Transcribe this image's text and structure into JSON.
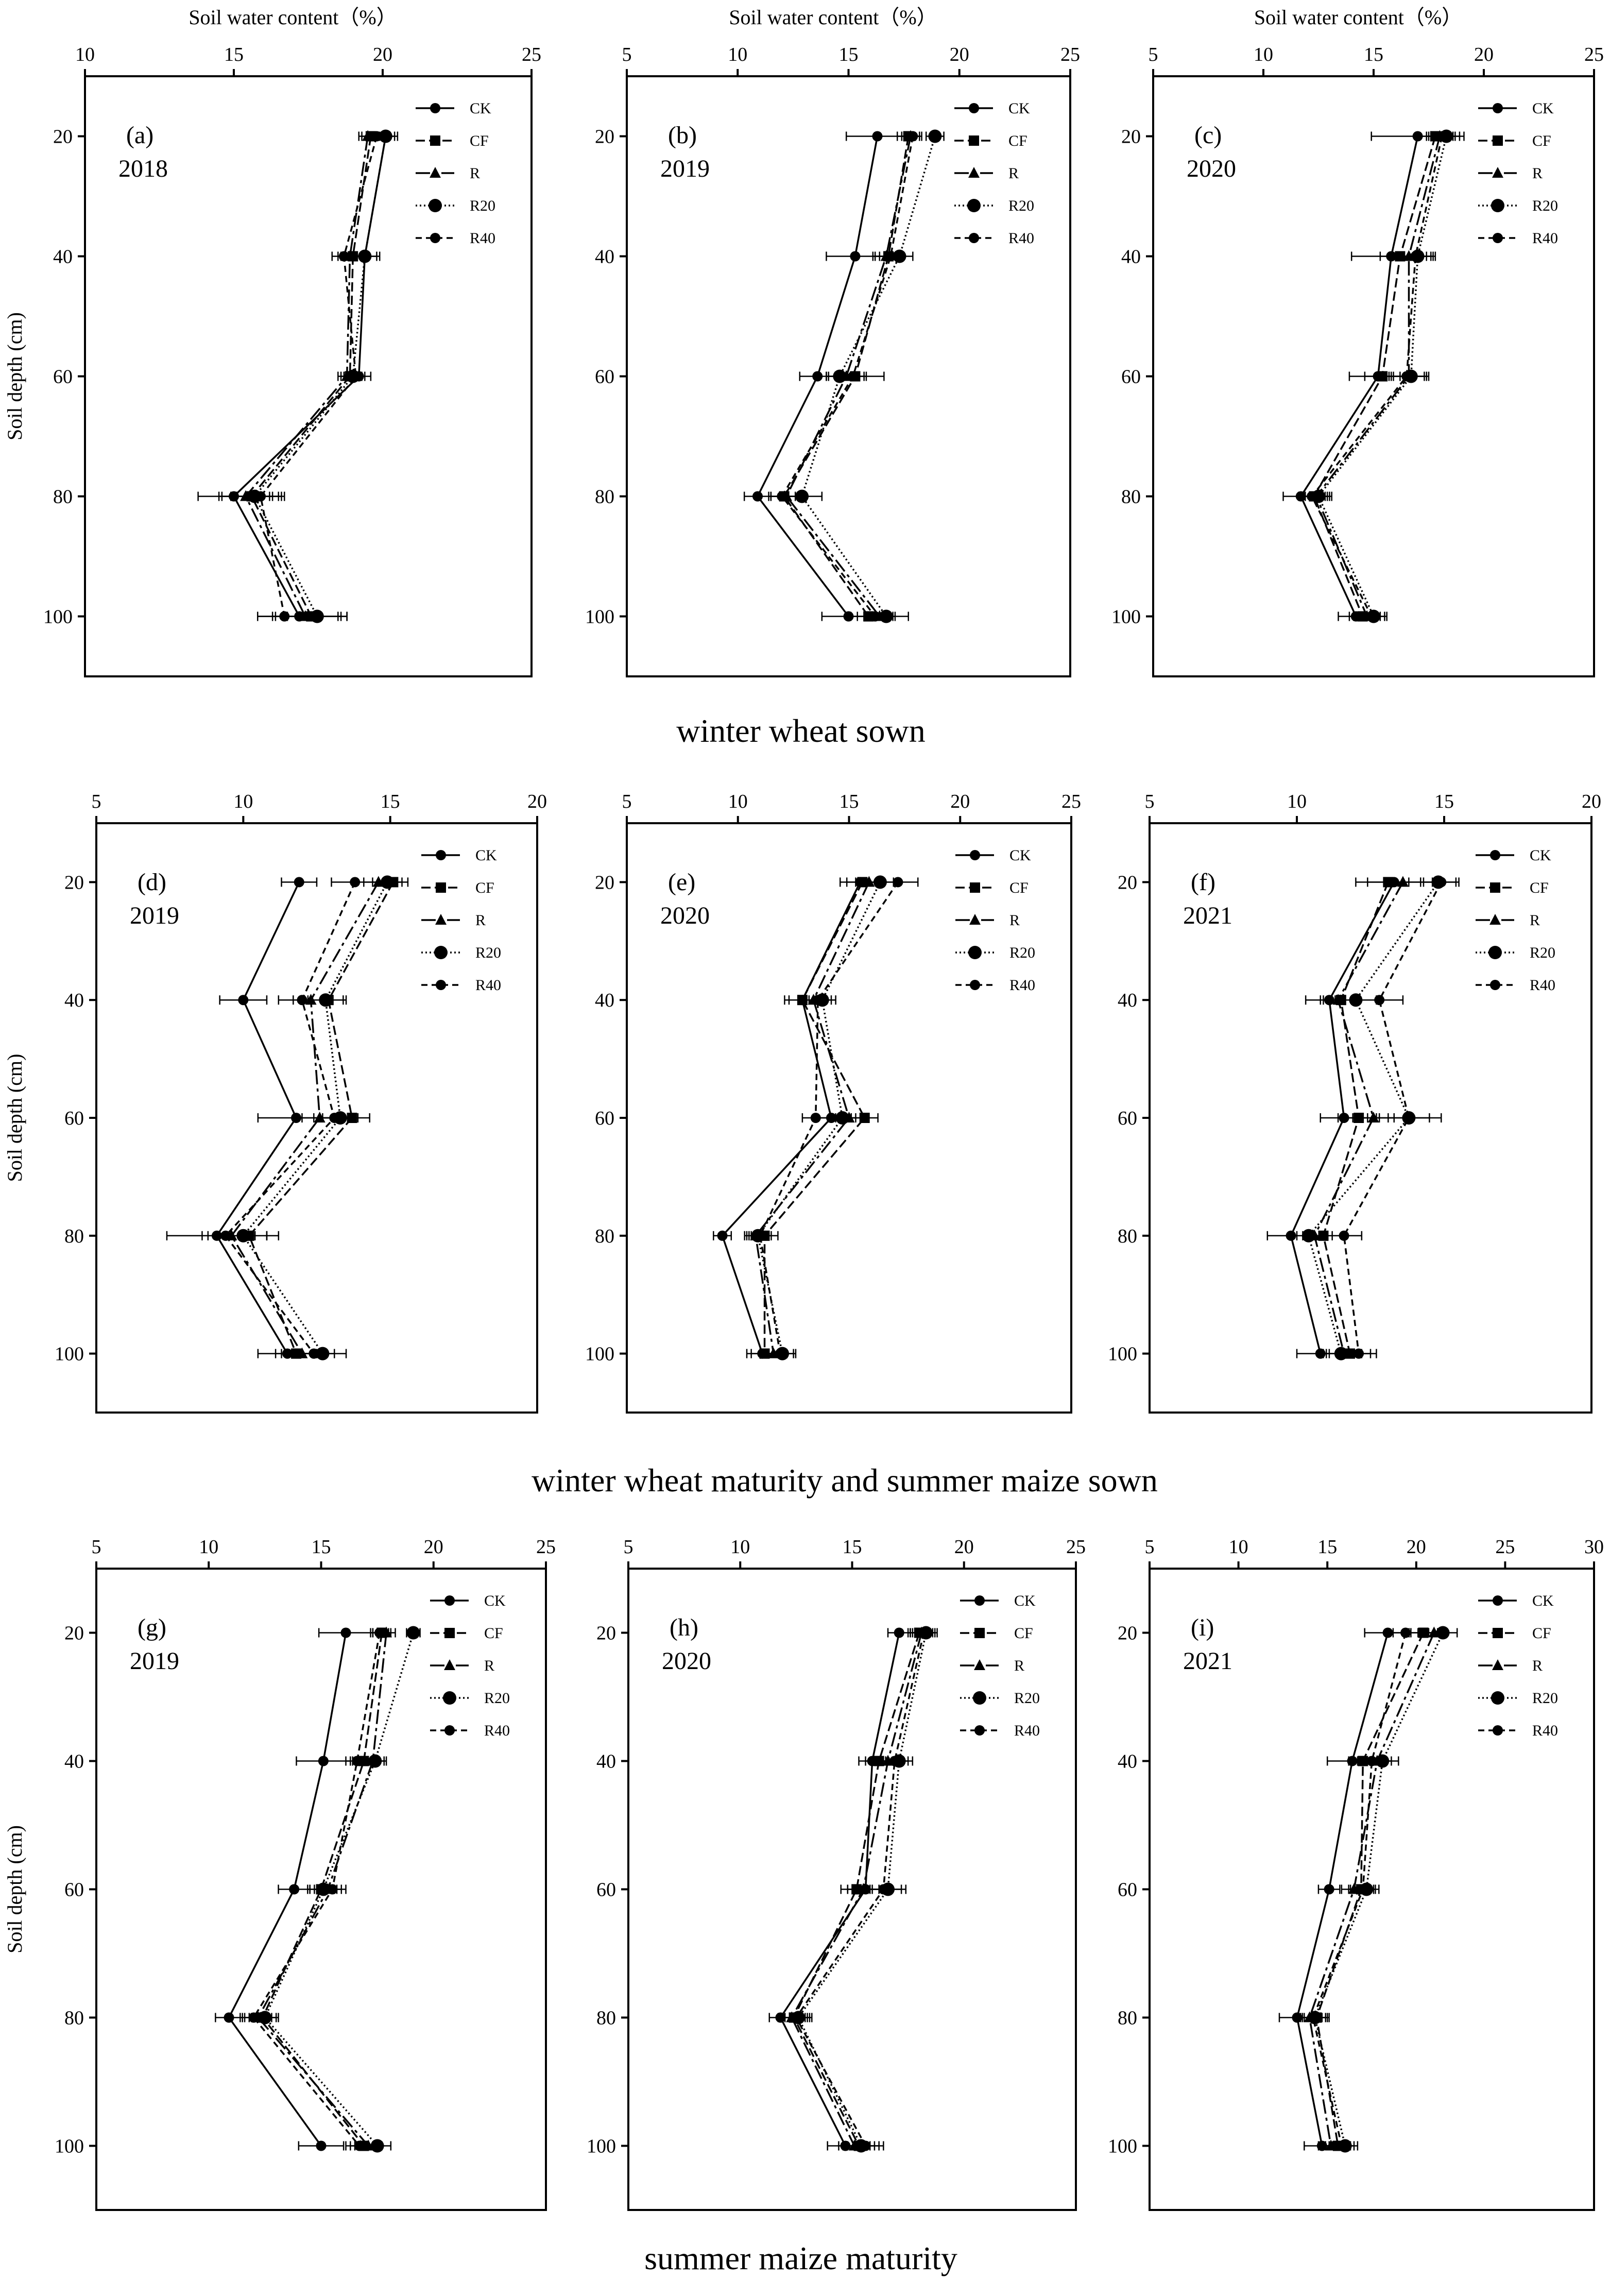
{
  "row_captions": [
    "winter wheat sown",
    "winter wheat maturity and summer maize sown",
    "summer maize maturity"
  ],
  "series_styles": [
    {
      "name": "CK",
      "dash": "",
      "marker": "circle"
    },
    {
      "name": "CF",
      "dash": "18,8",
      "marker": "square"
    },
    {
      "name": "R",
      "dash": "28,8,6,8",
      "marker": "triangle"
    },
    {
      "name": "R20",
      "dash": "3,5",
      "marker": "bigcircle"
    },
    {
      "name": "R40",
      "dash": "12,8",
      "marker": "circle"
    }
  ],
  "chart_data": [
    {
      "type": "line",
      "panel": "(a)",
      "year": "2018",
      "xlabel": "Soil water content（%）",
      "ylabel": "Soil depth (cm)",
      "xlim": [
        10,
        25
      ],
      "xticks": [
        10,
        15,
        20,
        25
      ],
      "ylim": [
        110,
        10
      ],
      "yticks": [
        20,
        40,
        60,
        80,
        100
      ],
      "depths": [
        20,
        40,
        60,
        80,
        100
      ],
      "legend": [
        "CK",
        "CF",
        "R",
        "R20",
        "R40"
      ],
      "series": [
        {
          "name": "CK",
          "values": [
            20.1,
            19.4,
            19.2,
            15.0,
            17.2
          ],
          "err": [
            0.4,
            0.5,
            0.4,
            1.2,
            1.4
          ]
        },
        {
          "name": "CF",
          "values": [
            19.6,
            19.0,
            18.9,
            15.6,
            17.6
          ],
          "err": [
            0.3,
            0.4,
            0.3,
            1.0,
            1.2
          ]
        },
        {
          "name": "R",
          "values": [
            19.5,
            18.9,
            18.8,
            15.4,
            17.4
          ],
          "err": [
            0.3,
            0.4,
            0.3,
            0.9,
            1.1
          ]
        },
        {
          "name": "R20",
          "values": [
            20.1,
            19.4,
            19.0,
            15.7,
            17.8
          ],
          "err": [
            0.3,
            0.4,
            0.3,
            0.8,
            1.0
          ]
        },
        {
          "name": "R40",
          "values": [
            19.8,
            18.7,
            19.1,
            15.9,
            16.7
          ],
          "err": [
            0.3,
            0.4,
            0.3,
            0.8,
            0.9
          ]
        }
      ]
    },
    {
      "type": "line",
      "panel": "(b)",
      "year": "2019",
      "xlabel": "Soil water content（%）",
      "ylabel": "",
      "xlim": [
        5,
        25
      ],
      "xticks": [
        5,
        10,
        15,
        20,
        25
      ],
      "ylim": [
        110,
        10
      ],
      "yticks": [
        20,
        40,
        60,
        80,
        100
      ],
      "depths": [
        20,
        40,
        60,
        80,
        100
      ],
      "legend": [
        "CK",
        "CF",
        "R",
        "R20",
        "R40"
      ],
      "series": [
        {
          "name": "CK",
          "values": [
            16.3,
            15.3,
            13.6,
            10.9,
            15.0
          ],
          "err": [
            1.4,
            1.3,
            0.8,
            0.6,
            1.2
          ]
        },
        {
          "name": "CF",
          "values": [
            17.7,
            16.8,
            15.3,
            12.1,
            15.9
          ],
          "err": [
            0.5,
            0.6,
            1.3,
            0.6,
            0.8
          ]
        },
        {
          "name": "R",
          "values": [
            17.8,
            16.7,
            14.9,
            12.2,
            16.4
          ],
          "err": [
            0.4,
            0.6,
            0.8,
            0.7,
            0.7
          ]
        },
        {
          "name": "R20",
          "values": [
            18.9,
            17.3,
            14.6,
            12.9,
            16.7
          ],
          "err": [
            0.4,
            0.6,
            0.6,
            0.9,
            1.0
          ]
        },
        {
          "name": "R40",
          "values": [
            17.9,
            16.9,
            15.2,
            12.0,
            16.2
          ],
          "err": [
            0.4,
            0.5,
            0.6,
            0.6,
            0.8
          ]
        }
      ]
    },
    {
      "type": "line",
      "panel": "(c)",
      "year": "2020",
      "xlabel": "Soil water content（%）",
      "ylabel": "",
      "xlim": [
        5,
        25
      ],
      "xticks": [
        5,
        10,
        15,
        20,
        25
      ],
      "ylim": [
        110,
        10
      ],
      "yticks": [
        20,
        40,
        60,
        80,
        100
      ],
      "depths": [
        20,
        40,
        60,
        80,
        100
      ],
      "legend": [
        "CK",
        "CF",
        "R",
        "R20",
        "R40"
      ],
      "series": [
        {
          "name": "CK",
          "values": [
            17.0,
            15.8,
            15.2,
            11.7,
            14.2
          ],
          "err": [
            2.1,
            1.8,
            1.3,
            0.8,
            0.8
          ]
        },
        {
          "name": "CF",
          "values": [
            17.8,
            16.2,
            15.4,
            12.3,
            14.5
          ],
          "err": [
            0.8,
            0.9,
            0.8,
            0.6,
            0.6
          ]
        },
        {
          "name": "R",
          "values": [
            18.0,
            16.6,
            16.6,
            12.4,
            14.7
          ],
          "err": [
            0.6,
            0.8,
            0.8,
            0.6,
            0.6
          ]
        },
        {
          "name": "R20",
          "values": [
            18.3,
            17.0,
            16.7,
            12.5,
            15.0
          ],
          "err": [
            0.6,
            0.8,
            0.8,
            0.6,
            0.6
          ]
        },
        {
          "name": "R40",
          "values": [
            18.1,
            16.9,
            16.5,
            12.2,
            14.9
          ],
          "err": [
            0.6,
            0.8,
            0.8,
            0.6,
            0.6
          ]
        }
      ]
    },
    {
      "type": "line",
      "panel": "(d)",
      "year": "2019",
      "xlabel": "",
      "ylabel": "Soil depth (cm)",
      "xlim": [
        5,
        20
      ],
      "xticks": [
        5,
        10,
        15,
        20
      ],
      "ylim": [
        110,
        10
      ],
      "yticks": [
        20,
        40,
        60,
        80,
        100
      ],
      "depths": [
        20,
        40,
        60,
        80,
        100
      ],
      "legend": [
        "CK",
        "CF",
        "R",
        "R20",
        "R40"
      ],
      "series": [
        {
          "name": "CK",
          "values": [
            11.9,
            10.0,
            11.8,
            9.1,
            11.5
          ],
          "err": [
            0.6,
            0.8,
            1.3,
            1.7,
            1.0
          ]
        },
        {
          "name": "CF",
          "values": [
            15.1,
            12.9,
            13.7,
            10.2,
            11.8
          ],
          "err": [
            0.5,
            0.6,
            0.6,
            1.0,
            0.7
          ]
        },
        {
          "name": "R",
          "values": [
            14.6,
            12.3,
            12.6,
            9.6,
            12.0
          ],
          "err": [
            0.5,
            0.6,
            0.6,
            0.8,
            0.7
          ]
        },
        {
          "name": "R20",
          "values": [
            14.9,
            12.8,
            13.3,
            10.0,
            12.7
          ],
          "err": [
            0.5,
            0.6,
            0.6,
            0.8,
            0.8
          ]
        },
        {
          "name": "R40",
          "values": [
            13.8,
            12.0,
            13.1,
            9.4,
            12.4
          ],
          "err": [
            0.8,
            0.8,
            0.7,
            0.8,
            0.7
          ]
        }
      ]
    },
    {
      "type": "line",
      "panel": "(e)",
      "year": "2020",
      "xlabel": "",
      "ylabel": "",
      "xlim": [
        5,
        25
      ],
      "xticks": [
        5,
        10,
        15,
        20,
        25
      ],
      "ylim": [
        110,
        10
      ],
      "yticks": [
        20,
        40,
        60,
        80,
        100
      ],
      "depths": [
        20,
        40,
        60,
        80,
        100
      ],
      "legend": [
        "CK",
        "CF",
        "R",
        "R20",
        "R40"
      ],
      "series": [
        {
          "name": "CK",
          "values": [
            15.5,
            12.9,
            14.2,
            9.3,
            11.1
          ],
          "err": [
            0.9,
            0.8,
            0.7,
            0.4,
            0.7
          ]
        },
        {
          "name": "CF",
          "values": [
            15.6,
            12.9,
            15.7,
            11.2,
            11.2
          ],
          "err": [
            0.7,
            0.6,
            0.6,
            0.6,
            0.6
          ]
        },
        {
          "name": "R",
          "values": [
            15.9,
            13.4,
            15.0,
            10.8,
            11.6
          ],
          "err": [
            0.6,
            0.6,
            0.6,
            0.5,
            0.6
          ]
        },
        {
          "name": "R20",
          "values": [
            16.4,
            13.8,
            14.7,
            10.9,
            12.0
          ],
          "err": [
            0.6,
            0.6,
            0.6,
            0.5,
            0.6
          ]
        },
        {
          "name": "R40",
          "values": [
            17.2,
            13.6,
            13.5,
            11.0,
            11.9
          ],
          "err": [
            0.9,
            0.6,
            0.6,
            0.5,
            0.6
          ]
        }
      ]
    },
    {
      "type": "line",
      "panel": "(f)",
      "year": "2021",
      "xlabel": "",
      "ylabel": "",
      "xlim": [
        5,
        20
      ],
      "xticks": [
        5,
        10,
        15,
        20
      ],
      "ylim": [
        110,
        10
      ],
      "yticks": [
        20,
        40,
        60,
        80,
        100
      ],
      "depths": [
        20,
        40,
        60,
        80,
        100
      ],
      "legend": [
        "CK",
        "CF",
        "R",
        "R20",
        "R40"
      ],
      "series": [
        {
          "name": "CK",
          "values": [
            13.3,
            11.1,
            11.6,
            9.8,
            10.8
          ],
          "err": [
            1.3,
            0.8,
            0.8,
            0.8,
            0.8
          ]
        },
        {
          "name": "CF",
          "values": [
            13.1,
            11.5,
            12.1,
            10.9,
            11.8
          ],
          "err": [
            0.7,
            0.6,
            0.7,
            0.7,
            0.7
          ]
        },
        {
          "name": "R",
          "values": [
            13.6,
            11.4,
            12.6,
            10.6,
            11.6
          ],
          "err": [
            0.6,
            0.6,
            0.7,
            0.6,
            0.6
          ]
        },
        {
          "name": "R20",
          "values": [
            14.8,
            12.0,
            13.8,
            10.4,
            11.5
          ],
          "err": [
            0.6,
            0.7,
            1.1,
            0.6,
            0.6
          ]
        },
        {
          "name": "R40",
          "values": [
            14.9,
            12.8,
            13.8,
            11.6,
            12.1
          ],
          "err": [
            0.6,
            0.8,
            0.7,
            0.6,
            0.6
          ]
        }
      ]
    },
    {
      "type": "line",
      "panel": "(g)",
      "year": "2019",
      "xlabel": "",
      "ylabel": "Soil depth (cm)",
      "xlim": [
        5,
        25
      ],
      "xticks": [
        5,
        10,
        15,
        20,
        25
      ],
      "ylim": [
        110,
        10
      ],
      "yticks": [
        20,
        40,
        60,
        80,
        100
      ],
      "depths": [
        20,
        40,
        60,
        80,
        100
      ],
      "legend": [
        "CK",
        "CF",
        "R",
        "R20",
        "R40"
      ],
      "series": [
        {
          "name": "CK",
          "values": [
            16.1,
            15.1,
            13.8,
            10.9,
            15.0
          ],
          "err": [
            1.2,
            1.2,
            0.7,
            0.6,
            1.0
          ]
        },
        {
          "name": "CF",
          "values": [
            17.7,
            16.9,
            15.0,
            12.4,
            16.9
          ],
          "err": [
            0.4,
            0.5,
            0.6,
            0.6,
            0.6
          ]
        },
        {
          "name": "R",
          "values": [
            17.9,
            17.3,
            15.3,
            12.2,
            17.1
          ],
          "err": [
            0.4,
            0.5,
            0.6,
            0.6,
            0.6
          ]
        },
        {
          "name": "R20",
          "values": [
            19.1,
            17.4,
            15.1,
            12.5,
            17.5
          ],
          "err": [
            0.3,
            0.5,
            0.6,
            0.6,
            0.6
          ]
        },
        {
          "name": "R40",
          "values": [
            17.6,
            16.6,
            15.5,
            12.0,
            16.7
          ],
          "err": [
            0.4,
            0.5,
            0.6,
            0.6,
            0.6
          ]
        }
      ]
    },
    {
      "type": "line",
      "panel": "(h)",
      "year": "2020",
      "xlabel": "",
      "ylabel": "",
      "xlim": [
        5,
        25
      ],
      "xticks": [
        5,
        10,
        15,
        20,
        25
      ],
      "ylim": [
        110,
        10
      ],
      "yticks": [
        20,
        40,
        60,
        80,
        100
      ],
      "depths": [
        20,
        40,
        60,
        80,
        100
      ],
      "legend": [
        "CK",
        "CF",
        "R",
        "R20",
        "R40"
      ],
      "series": [
        {
          "name": "CK",
          "values": [
            17.1,
            15.9,
            15.6,
            11.8,
            14.7
          ],
          "err": [
            0.5,
            0.6,
            0.8,
            0.5,
            0.8
          ]
        },
        {
          "name": "CF",
          "values": [
            18.0,
            16.2,
            15.2,
            12.4,
            15.3
          ],
          "err": [
            0.5,
            0.6,
            0.7,
            0.6,
            0.7
          ]
        },
        {
          "name": "R",
          "values": [
            18.1,
            16.6,
            15.5,
            12.3,
            15.1
          ],
          "err": [
            0.5,
            0.6,
            0.7,
            0.6,
            0.7
          ]
        },
        {
          "name": "R20",
          "values": [
            18.3,
            17.1,
            16.6,
            12.6,
            15.4
          ],
          "err": [
            0.5,
            0.6,
            0.8,
            0.6,
            0.8
          ]
        },
        {
          "name": "R40",
          "values": [
            18.2,
            16.9,
            16.4,
            12.5,
            15.6
          ],
          "err": [
            0.5,
            0.6,
            0.8,
            0.6,
            0.8
          ]
        }
      ]
    },
    {
      "type": "line",
      "panel": "(i)",
      "year": "2021",
      "xlabel": "",
      "ylabel": "",
      "xlim": [
        5,
        30
      ],
      "xticks": [
        5,
        10,
        15,
        20,
        25,
        30
      ],
      "ylim": [
        110,
        10
      ],
      "yticks": [
        20,
        40,
        60,
        80,
        100
      ],
      "depths": [
        20,
        40,
        60,
        80,
        100
      ],
      "legend": [
        "CK",
        "CF",
        "R",
        "R20",
        "R40"
      ],
      "series": [
        {
          "name": "CK",
          "values": [
            18.4,
            16.4,
            15.1,
            13.3,
            14.7
          ],
          "err": [
            1.3,
            1.4,
            0.6,
            1.0,
            1.0
          ]
        },
        {
          "name": "CF",
          "values": [
            20.4,
            17.0,
            16.9,
            14.4,
            15.6
          ],
          "err": [
            0.8,
            0.8,
            0.7,
            0.7,
            0.7
          ]
        },
        {
          "name": "R",
          "values": [
            21.0,
            17.8,
            16.5,
            14.0,
            15.2
          ],
          "err": [
            0.7,
            0.8,
            0.7,
            0.7,
            0.7
          ]
        },
        {
          "name": "R20",
          "values": [
            21.5,
            18.1,
            17.2,
            14.3,
            16.0
          ],
          "err": [
            0.8,
            0.9,
            0.7,
            0.7,
            0.7
          ]
        },
        {
          "name": "R40",
          "values": [
            19.4,
            17.5,
            17.0,
            14.2,
            15.8
          ],
          "err": [
            0.7,
            0.8,
            0.7,
            0.7,
            0.7
          ]
        }
      ]
    }
  ]
}
